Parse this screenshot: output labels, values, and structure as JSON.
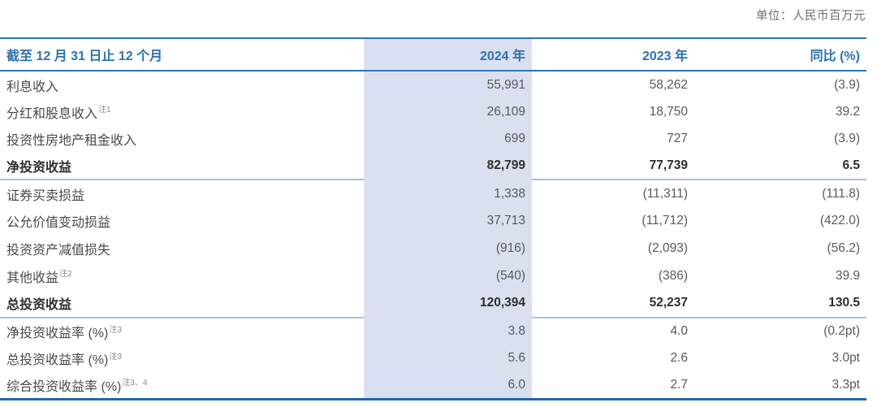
{
  "unit_note": "单位：人民币百万元",
  "colors": {
    "header_blue": "#2b72b0",
    "header_line": "#2e75b6",
    "section_line": "#aac1d3",
    "bottom_line": "#1e68af",
    "highlight_column_bg": "#dbe0f0",
    "label_text": "#4a4a4a",
    "value_text": "#58595b"
  },
  "table": {
    "header": {
      "period": "截至 12 月 31 日止 12 个月",
      "col_2024": "2024 年",
      "col_2023": "2023 年",
      "col_yoy": "同比 (%)"
    },
    "sections": [
      {
        "rows": [
          {
            "label": "利息收入",
            "note": "",
            "v2024": "55,991",
            "v2023": "58,262",
            "yoy": "(3.9)",
            "bold": false
          },
          {
            "label": "分红和股息收入",
            "note": "注1",
            "v2024": "26,109",
            "v2023": "18,750",
            "yoy": "39.2",
            "bold": false
          },
          {
            "label": "投资性房地产租金收入",
            "note": "",
            "v2024": "699",
            "v2023": "727",
            "yoy": "(3.9)",
            "bold": false
          },
          {
            "label": "净投资收益",
            "note": "",
            "v2024": "82,799",
            "v2023": "77,739",
            "yoy": "6.5",
            "bold": true
          }
        ]
      },
      {
        "rows": [
          {
            "label": "证券买卖损益",
            "note": "",
            "v2024": "1,338",
            "v2023": "(11,311)",
            "yoy": "(111.8)",
            "bold": false
          },
          {
            "label": "公允价值变动损益",
            "note": "",
            "v2024": "37,713",
            "v2023": "(11,712)",
            "yoy": "(422.0)",
            "bold": false
          },
          {
            "label": "投资资产减值损失",
            "note": "",
            "v2024": "(916)",
            "v2023": "(2,093)",
            "yoy": "(56.2)",
            "bold": false
          },
          {
            "label": "其他收益",
            "note": "注2",
            "v2024": "(540)",
            "v2023": "(386)",
            "yoy": "39.9",
            "bold": false
          },
          {
            "label": "总投资收益",
            "note": "",
            "v2024": "120,394",
            "v2023": "52,237",
            "yoy": "130.5",
            "bold": true
          }
        ]
      },
      {
        "rows": [
          {
            "label": "净投资收益率 (%)",
            "note": "注3",
            "v2024": "3.8",
            "v2023": "4.0",
            "yoy": "(0.2pt)",
            "bold": false
          },
          {
            "label": "总投资收益率 (%)",
            "note": "注3",
            "v2024": "5.6",
            "v2023": "2.6",
            "yoy": "3.0pt",
            "bold": false
          },
          {
            "label": "综合投资收益率 (%)",
            "note": "注3、4",
            "v2024": "6.0",
            "v2023": "2.7",
            "yoy": "3.3pt",
            "bold": false
          }
        ]
      }
    ]
  }
}
